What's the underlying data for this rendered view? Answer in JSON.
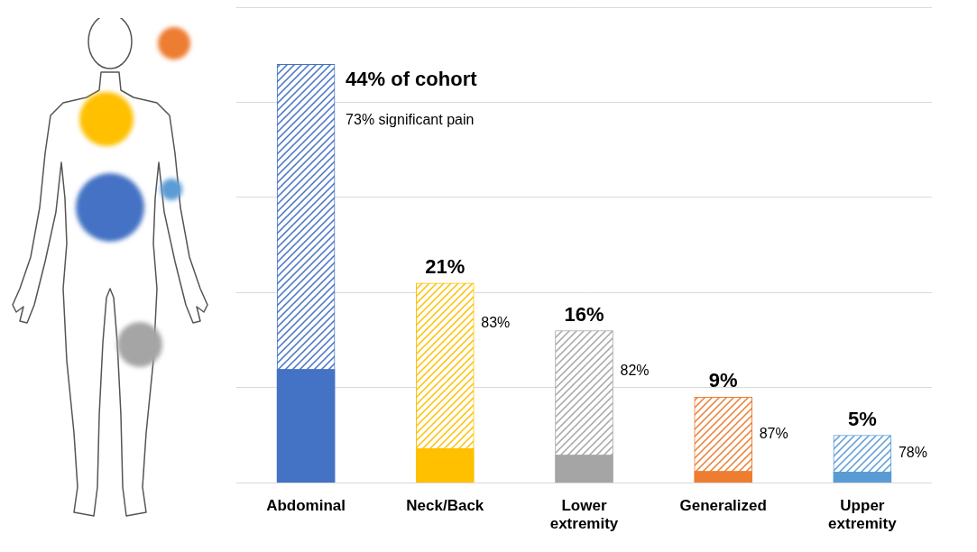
{
  "chart_data": {
    "type": "bar",
    "categories": [
      "Abdominal",
      "Neck/Back",
      "Lower extremity",
      "Generalized",
      "Upper extremity"
    ],
    "values": [
      44,
      21,
      16,
      9,
      5
    ],
    "value_labels": [
      "44% of cohort",
      "21%",
      "16%",
      "9%",
      "5%"
    ],
    "significant_pain": {
      "values": [
        73,
        83,
        82,
        87,
        78
      ],
      "value_labels": [
        "73% significant pain",
        "83%",
        "82%",
        "87%",
        "78%"
      ]
    },
    "colors": [
      "#4472c4",
      "#ffc000",
      "#a5a5a5",
      "#ed7d31",
      "#5b9bd5"
    ],
    "ylim": [
      0,
      50
    ],
    "yticks": [
      0,
      10,
      20,
      30,
      40,
      50
    ],
    "grid": true,
    "data_labels": true,
    "tick_labels": "x"
  }
}
